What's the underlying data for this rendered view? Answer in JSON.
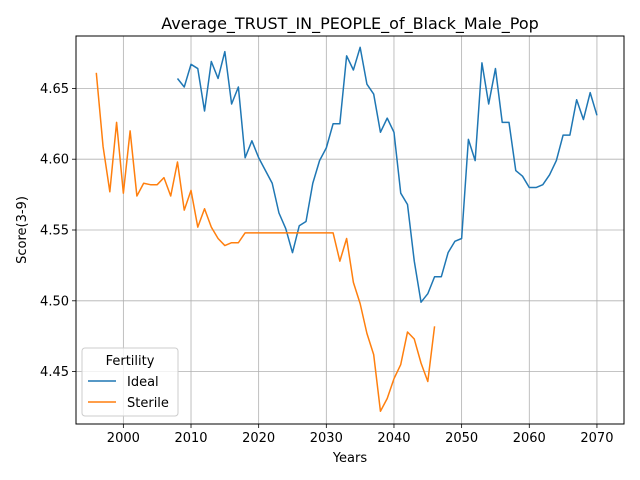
{
  "chart_data": {
    "type": "line",
    "title": "Average_TRUST_IN_PEOPLE_of_Black_Male_Pop",
    "xlabel": "Years",
    "ylabel": "Score(3-9)",
    "xlim": [
      1993,
      2074
    ],
    "ylim": [
      4.413,
      4.687
    ],
    "xticks": [
      2000,
      2010,
      2020,
      2030,
      2040,
      2050,
      2060,
      2070
    ],
    "xtick_labels": [
      "2000",
      "2010",
      "2020",
      "2030",
      "2040",
      "2050",
      "2060",
      "2070"
    ],
    "yticks": [
      4.45,
      4.5,
      4.55,
      4.6,
      4.65
    ],
    "ytick_labels": [
      "4.45",
      "4.50",
      "4.55",
      "4.60",
      "4.65"
    ],
    "grid": true,
    "legend": {
      "title": "Fertility",
      "placement": "lower-left"
    },
    "series": [
      {
        "name": "Ideal",
        "color": "#1f77b4",
        "x": [
          2008,
          2009,
          2010,
          2011,
          2012,
          2013,
          2014,
          2015,
          2016,
          2017,
          2018,
          2019,
          2020,
          2021,
          2022,
          2023,
          2024,
          2025,
          2026,
          2027,
          2028,
          2029,
          2030,
          2031,
          2032,
          2033,
          2034,
          2035,
          2036,
          2037,
          2038,
          2039,
          2040,
          2041,
          2042,
          2043,
          2044,
          2045,
          2046,
          2047,
          2048,
          2049,
          2050,
          2051,
          2052,
          2053,
          2054,
          2055,
          2056,
          2057,
          2058,
          2059,
          2060,
          2061,
          2062,
          2063,
          2064,
          2065,
          2066,
          2067,
          2068,
          2069,
          2070
        ],
        "y": [
          4.657,
          4.651,
          4.667,
          4.664,
          4.634,
          4.669,
          4.657,
          4.676,
          4.639,
          4.651,
          4.601,
          4.613,
          4.601,
          4.592,
          4.583,
          4.562,
          4.551,
          4.534,
          4.553,
          4.556,
          4.583,
          4.599,
          4.608,
          4.625,
          4.625,
          4.673,
          4.663,
          4.679,
          4.653,
          4.646,
          4.619,
          4.629,
          4.619,
          4.576,
          4.568,
          4.528,
          4.499,
          4.505,
          4.517,
          4.517,
          4.534,
          4.542,
          4.544,
          4.614,
          4.599,
          4.668,
          4.639,
          4.664,
          4.626,
          4.626,
          4.592,
          4.588,
          4.58,
          4.58,
          4.582,
          4.589,
          4.599,
          4.617,
          4.617,
          4.642,
          4.628,
          4.647,
          4.631
        ]
      },
      {
        "name": "Sterile",
        "color": "#ff7f0e",
        "x": [
          1996,
          1997,
          1998,
          1999,
          2000,
          2001,
          2002,
          2003,
          2004,
          2005,
          2006,
          2007,
          2008,
          2009,
          2010,
          2011,
          2012,
          2013,
          2014,
          2015,
          2016,
          2017,
          2018,
          2019,
          2020,
          2021,
          2022,
          2023,
          2024,
          2025,
          2026,
          2027,
          2028,
          2029,
          2030,
          2031,
          2032,
          2033,
          2034,
          2035,
          2036,
          2037,
          2038,
          2039,
          2040,
          2041,
          2042,
          2043,
          2044,
          2045,
          2046
        ],
        "y": [
          4.661,
          4.609,
          4.577,
          4.626,
          4.576,
          4.62,
          4.574,
          4.583,
          4.582,
          4.582,
          4.587,
          4.574,
          4.598,
          4.564,
          4.578,
          4.552,
          4.565,
          4.552,
          4.544,
          4.539,
          4.541,
          4.541,
          4.548,
          4.548,
          4.548,
          4.548,
          4.548,
          4.548,
          4.548,
          4.548,
          4.548,
          4.548,
          4.548,
          4.548,
          4.548,
          4.548,
          4.528,
          4.544,
          4.513,
          4.498,
          4.477,
          4.462,
          4.422,
          4.431,
          4.445,
          4.455,
          4.478,
          4.473,
          4.456,
          4.443,
          4.482
        ]
      }
    ]
  }
}
